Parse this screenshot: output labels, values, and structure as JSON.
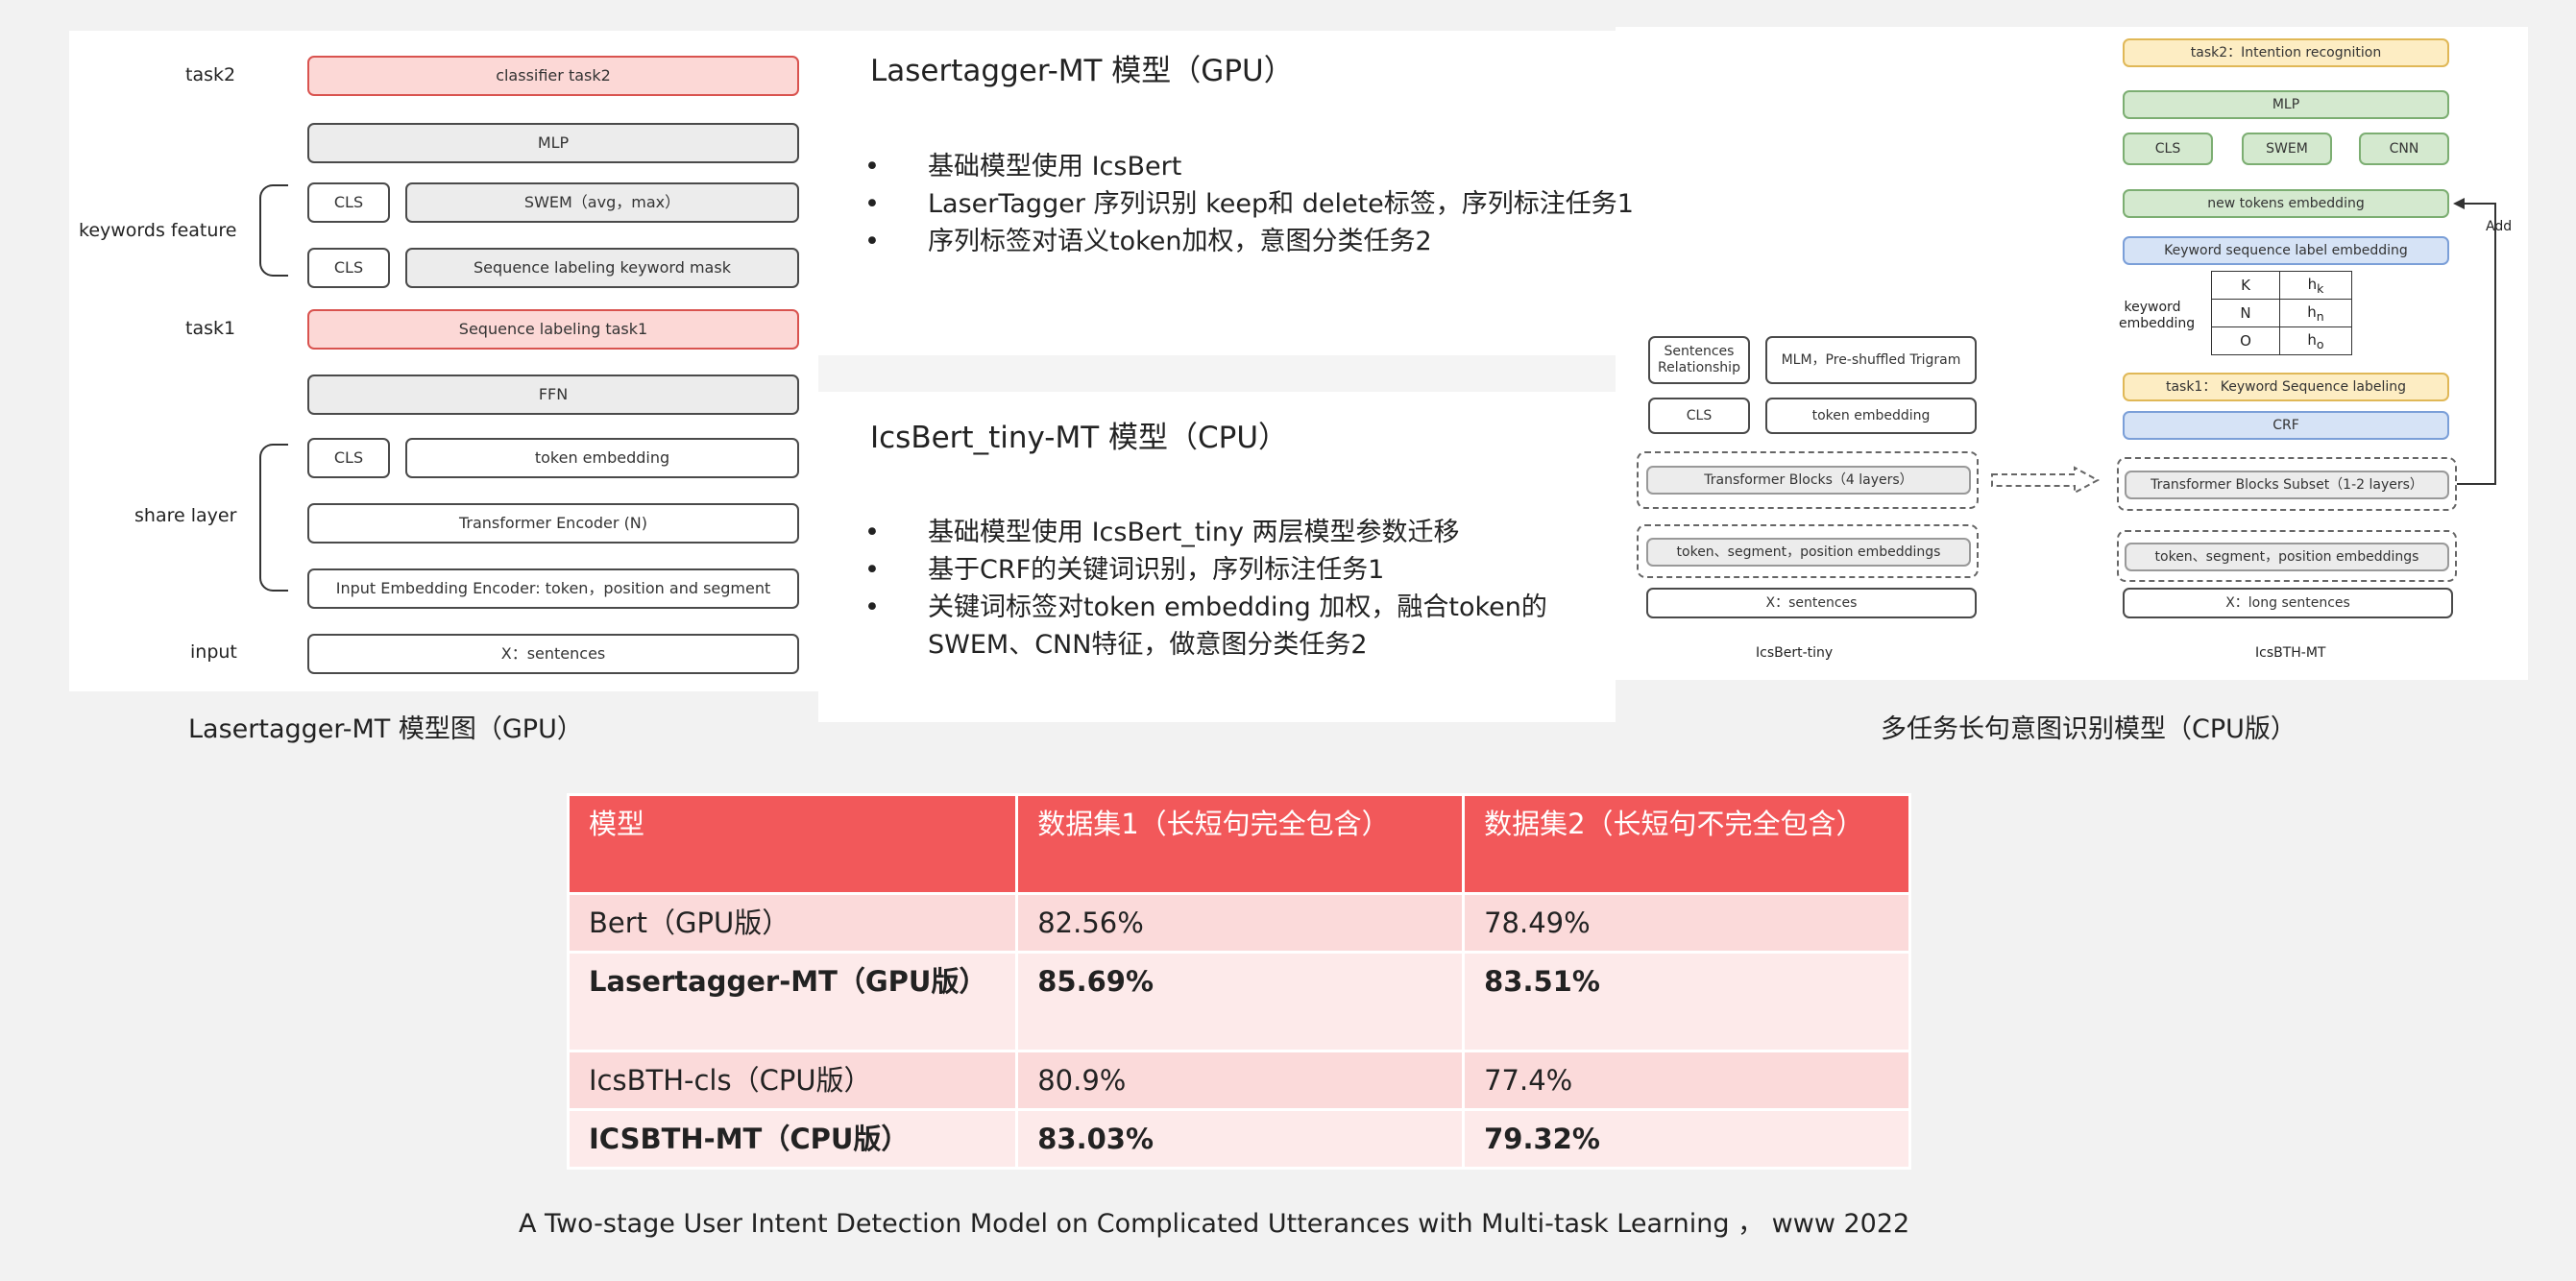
{
  "left_diagram": {
    "labels": {
      "task2": "task2",
      "keywords_feature": "keywords  feature",
      "task1": "task1",
      "share_layer": "share layer",
      "input": "input"
    },
    "boxes": {
      "classifier_task2": "classifier task2",
      "mlp": "MLP",
      "cls_1": "CLS",
      "swem": "SWEM（avg，max）",
      "cls_2": "CLS",
      "seq_label_kw_mask": "Sequence labeling keyword mask",
      "seq_label_task1": "Sequence labeling task1",
      "ffn": "FFN",
      "cls_3": "CLS",
      "token_embedding": "token embedding",
      "transformer_encoder": "Transformer  Encoder (N)",
      "input_embedding": "Input Embedding Encoder: token，position and segment",
      "x_sentences": "X：sentences"
    },
    "caption": "Lasertagger-MT 模型图（GPU）"
  },
  "middle_text": {
    "title1": "Lasertagger-MT 模型（GPU）",
    "bullets1": [
      "基础模型使用 IcsBert",
      "LaserTagger 序列识别 keep和 delete标签，序列标注任务1",
      "序列标签对语义token加权，意图分类任务2"
    ],
    "title2": "IcsBert_tiny-MT 模型（CPU）",
    "bullets2": [
      "基础模型使用 IcsBert_tiny 两层模型参数迁移",
      "基于CRF的关键词识别，序列标注任务1",
      "关键词标签对token embedding 加权，融合token的 SWEM、CNN特征，做意图分类任务2"
    ]
  },
  "right_diagram": {
    "tiny": {
      "sentences_relationship": "Sentences Relationship",
      "mlm": "MLM，Pre-shuffled Trigram",
      "cls": "CLS",
      "token_embedding": "token embedding",
      "transformer_blocks": "Transformer Blocks（4 layers）",
      "embeddings": "token、segment，position embeddings",
      "x_sentences": "X：sentences",
      "caption": "IcsBert-tiny"
    },
    "mt": {
      "task2": "task2：Intention recognition",
      "mlp": "MLP",
      "cls": "CLS",
      "swem": "SWEM",
      "cnn": "CNN",
      "new_tokens": "new tokens embedding",
      "add": "Add",
      "kw_seq_label_emb": "Keyword sequence label embedding",
      "keyword_embedding_label": "keyword embedding",
      "kw_table": [
        [
          "K",
          "h",
          "k"
        ],
        [
          "N",
          "h",
          "n"
        ],
        [
          "O",
          "h",
          "o"
        ]
      ],
      "task1": "task1：  Keyword Sequence labeling",
      "crf": "CRF",
      "transformer_subset": "Transformer Blocks  Subset（1-2 layers）",
      "embeddings": "token、segment，position embeddings",
      "x_long": "X：long sentences",
      "caption": "IcsBTH-MT"
    },
    "caption": "多任务长句意图识别模型（CPU版）"
  },
  "results_table": {
    "header": [
      "模型",
      "数据集1（长短句完全包含）",
      "数据集2（长短句不完全包含）"
    ],
    "rows": [
      [
        "Bert（GPU版）",
        "82.56%",
        "78.49%"
      ],
      [
        "Lasertagger-MT（GPU版）",
        "85.69%",
        "83.51%"
      ],
      [
        "IcsBTH-cls（CPU版）",
        "80.9%",
        "77.4%"
      ],
      [
        "ICSBTH-MT（CPU版）",
        "83.03%",
        "79.32%"
      ]
    ],
    "bold_rows": [
      1,
      3
    ],
    "colors": {
      "header_bg": "#f2585a",
      "row_odd": "#fbdada",
      "row_even": "#fdeaea"
    }
  },
  "citation": "A Two-stage User Intent Detection Model on Complicated Utterances with Multi-task Learning ， www 2022"
}
